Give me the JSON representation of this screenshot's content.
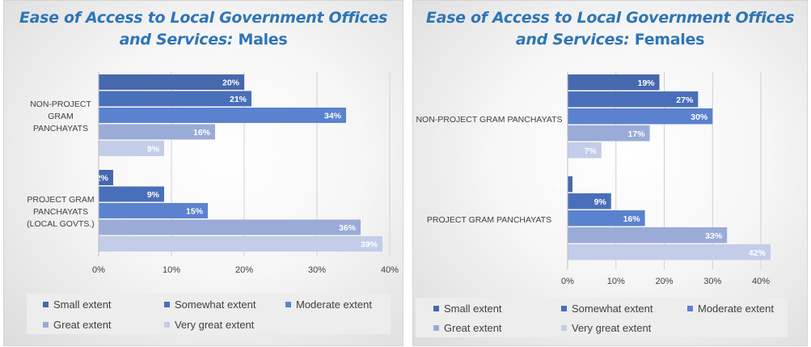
{
  "colors": {
    "title": "#2e75b6",
    "series": [
      "#4668ad",
      "#4a6fba",
      "#5b82cf",
      "#9aabd8",
      "#c3cde9"
    ],
    "grid": "#d0d0d0",
    "axis_text": "#404040"
  },
  "chart_data": [
    {
      "type": "bar",
      "orientation": "horizontal",
      "title": "Ease of Access to Local Government Offices and Services: Males",
      "title_parts": [
        "Ease of Access to Local Government Offices",
        "and Services:",
        "Males"
      ],
      "categories": [
        "NON-PROJECT GRAM PANCHAYATS",
        "PROJECT GRAM PANCHAYATS (LOCAL GOVTS.)"
      ],
      "category_label_lines": [
        [
          "NON-PROJECT",
          "GRAM",
          "PANCHAYATS"
        ],
        [
          "PROJECT GRAM",
          "PANCHAYATS",
          "(LOCAL GOVTS.)"
        ]
      ],
      "series": [
        {
          "name": "Small extent",
          "values": [
            20,
            2
          ]
        },
        {
          "name": "Somewhat extent",
          "values": [
            21,
            9
          ]
        },
        {
          "name": "Moderate extent",
          "values": [
            34,
            15
          ]
        },
        {
          "name": "Great extent",
          "values": [
            16,
            36
          ]
        },
        {
          "name": "Very great extent",
          "values": [
            9,
            39
          ]
        }
      ],
      "xlim": [
        0,
        40
      ],
      "xticks": [
        "0%",
        "10%",
        "20%",
        "30%",
        "40%"
      ],
      "value_format": "%",
      "grid": true,
      "legend_position": "bottom"
    },
    {
      "type": "bar",
      "orientation": "horizontal",
      "title": "Ease of Access to Local Government Offices and Services: Females",
      "title_parts": [
        "Ease of Access to Local Government Offices",
        "and Services:",
        "Females"
      ],
      "categories": [
        "NON-PROJECT GRAM PANCHAYATS",
        "PROJECT GRAM PANCHAYATS"
      ],
      "category_label_lines": [
        [
          "NON-PROJECT GRAM PANCHAYATS"
        ],
        [
          "PROJECT GRAM PANCHAYATS"
        ]
      ],
      "series": [
        {
          "name": "Small extent",
          "values": [
            19,
            1
          ]
        },
        {
          "name": "Somewhat extent",
          "values": [
            27,
            9
          ]
        },
        {
          "name": "Moderate extent",
          "values": [
            30,
            16
          ]
        },
        {
          "name": "Great extent",
          "values": [
            17,
            33
          ]
        },
        {
          "name": "Very great extent",
          "values": [
            7,
            42
          ]
        }
      ],
      "xlim": [
        0,
        40
      ],
      "xticks": [
        "0%",
        "10%",
        "20%",
        "30%",
        "40%"
      ],
      "value_format": "%",
      "grid": true,
      "legend_position": "bottom"
    }
  ]
}
